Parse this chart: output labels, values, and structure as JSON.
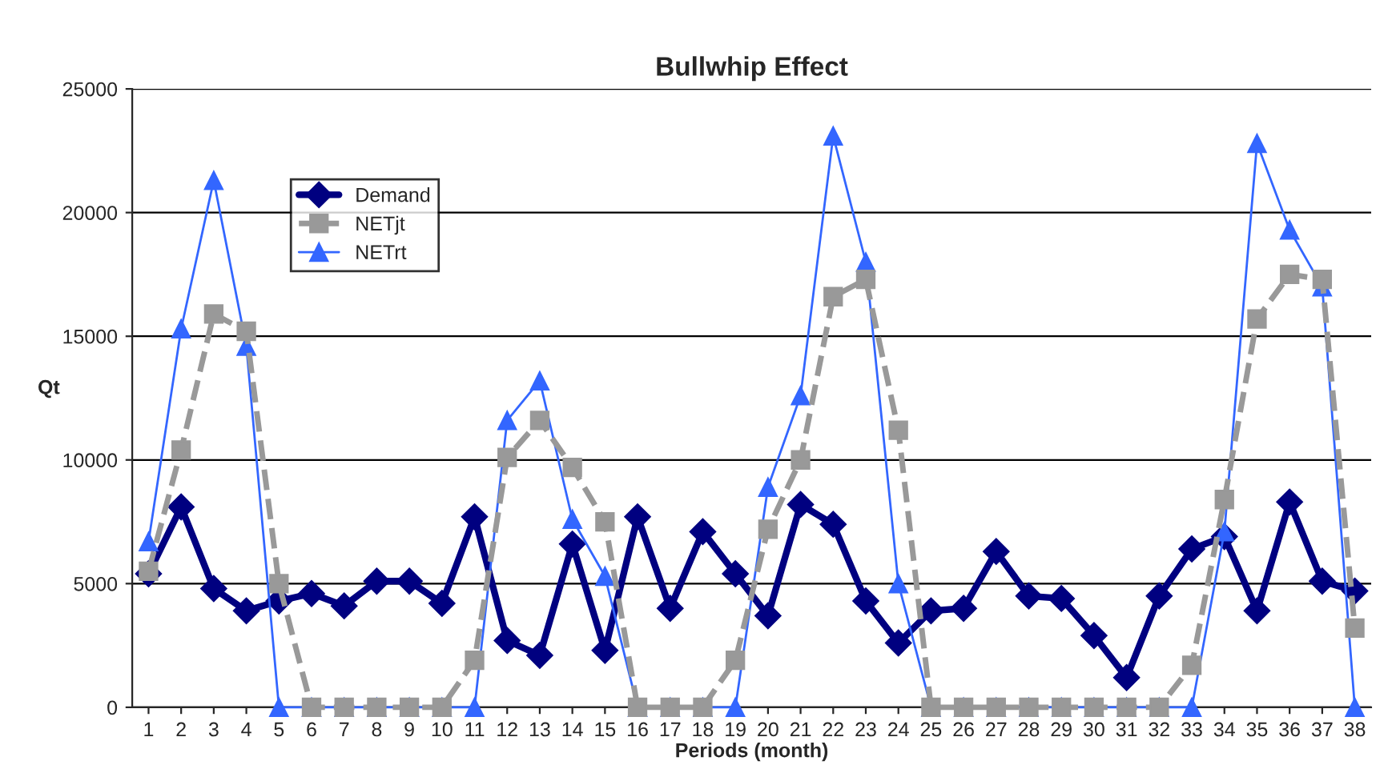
{
  "chart_data": {
    "type": "line",
    "title": "Bullwhip Effect",
    "xlabel": "Periods (month)",
    "ylabel": "Qt",
    "categories": [
      "1",
      "2",
      "3",
      "4",
      "5",
      "6",
      "7",
      "8",
      "9",
      "10",
      "11",
      "12",
      "13",
      "14",
      "15",
      "16",
      "17",
      "18",
      "19",
      "20",
      "21",
      "22",
      "23",
      "24",
      "25",
      "26",
      "27",
      "28",
      "29",
      "30",
      "31",
      "32",
      "33",
      "34",
      "35",
      "36",
      "37",
      "38"
    ],
    "series": [
      {
        "name": "Demand",
        "color": "#000080",
        "marker": "diamond",
        "line_style": "solid",
        "values": [
          5400,
          8100,
          4800,
          3900,
          4300,
          4600,
          4100,
          5100,
          5100,
          4200,
          7700,
          2700,
          2100,
          6600,
          2300,
          7700,
          4000,
          7100,
          5400,
          3700,
          8200,
          7400,
          4300,
          2600,
          3900,
          4000,
          6300,
          4500,
          4400,
          2900,
          1200,
          4500,
          6400,
          6900,
          3900,
          8300,
          5100,
          4700
        ]
      },
      {
        "name": "NETjt",
        "color": "#999999",
        "marker": "square",
        "line_style": "dashed",
        "values": [
          5500,
          10400,
          15900,
          15200,
          5000,
          0,
          0,
          0,
          0,
          0,
          1900,
          10100,
          11600,
          9700,
          7500,
          0,
          0,
          0,
          1900,
          7200,
          10000,
          16600,
          17300,
          11200,
          0,
          0,
          0,
          0,
          0,
          0,
          0,
          0,
          1700,
          8400,
          15700,
          17500,
          17300,
          3200
        ]
      },
      {
        "name": "NETrt",
        "color": "#3366ff",
        "marker": "triangle",
        "line_style": "solid",
        "values": [
          6700,
          15300,
          21300,
          14600,
          0,
          0,
          0,
          0,
          0,
          0,
          0,
          11600,
          13200,
          7600,
          5300,
          0,
          0,
          0,
          0,
          8900,
          12600,
          23100,
          18000,
          5000,
          0,
          0,
          0,
          0,
          0,
          0,
          0,
          0,
          0,
          7100,
          22800,
          19300,
          17000,
          0
        ]
      }
    ],
    "ylim": [
      0,
      25000
    ],
    "yticks": [
      0,
      5000,
      10000,
      15000,
      20000,
      25000
    ],
    "grid": "y",
    "legend": "top left"
  }
}
